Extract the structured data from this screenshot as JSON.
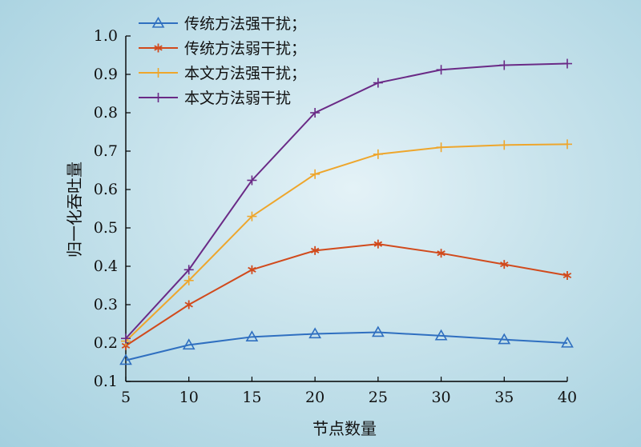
{
  "chart_data": {
    "type": "line",
    "xlabel": "节点数量",
    "ylabel": "归一化吞吐量",
    "x": [
      5,
      10,
      15,
      20,
      25,
      30,
      35,
      40
    ],
    "xticks": [
      "5",
      "10",
      "15",
      "20",
      "25",
      "30",
      "35",
      "40"
    ],
    "xlim": [
      5,
      40
    ],
    "ylim": [
      0.1,
      1.0
    ],
    "yticks": [
      "0.1",
      "0.2",
      "0.3",
      "0.4",
      "0.5",
      "0.6",
      "0.7",
      "0.8",
      "0.9",
      "1.0"
    ],
    "grid": false,
    "legend_position": "top-left",
    "series": [
      {
        "name": "传统方法强干扰；",
        "color": "#2f6fc0",
        "marker": "triangle",
        "values": [
          0.155,
          0.195,
          0.216,
          0.224,
          0.228,
          0.219,
          0.209,
          0.2
        ]
      },
      {
        "name": "传统方法弱干扰；",
        "color": "#d14a1c",
        "marker": "asterisk",
        "values": [
          0.193,
          0.3,
          0.391,
          0.441,
          0.458,
          0.434,
          0.405,
          0.376
        ]
      },
      {
        "name": "本文方法强干扰；",
        "color": "#eea62c",
        "marker": "plus",
        "values": [
          0.205,
          0.363,
          0.53,
          0.64,
          0.692,
          0.71,
          0.716,
          0.718
        ]
      },
      {
        "name": "本文方法弱干扰",
        "color": "#6a2a86",
        "marker": "plus",
        "values": [
          0.212,
          0.391,
          0.624,
          0.8,
          0.878,
          0.912,
          0.924,
          0.928
        ]
      }
    ]
  }
}
